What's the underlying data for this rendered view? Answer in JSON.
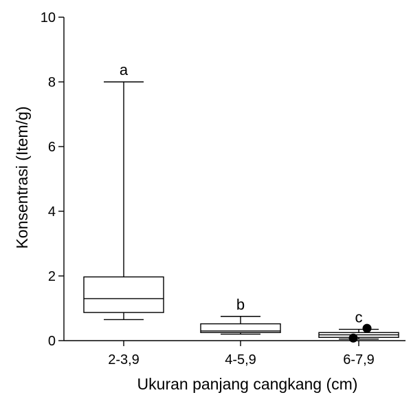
{
  "chart_data": {
    "type": "box",
    "title": "",
    "xlabel": "Ukuran panjang cangkang (cm)",
    "ylabel": "Konsentrasi (Item/g)",
    "ylim": [
      0,
      10
    ],
    "yticks": [
      0,
      2,
      4,
      6,
      8,
      10
    ],
    "grid": false,
    "categories": [
      "2-3,9",
      "4-5,9",
      "6-7,9"
    ],
    "boxes": [
      {
        "category": "2-3,9",
        "min": 0.65,
        "q1": 0.87,
        "median": 1.3,
        "q3": 1.97,
        "max": 8.0,
        "letter": "a",
        "outliers": []
      },
      {
        "category": "4-5,9",
        "min": 0.2,
        "q1": 0.25,
        "median": 0.3,
        "q3": 0.52,
        "max": 0.75,
        "letter": "b",
        "outliers": []
      },
      {
        "category": "6-7,9",
        "min": 0.05,
        "q1": 0.1,
        "median": 0.18,
        "q3": 0.25,
        "max": 0.35,
        "letter": "c",
        "outliers": [
          0.38,
          0.08
        ]
      }
    ]
  }
}
